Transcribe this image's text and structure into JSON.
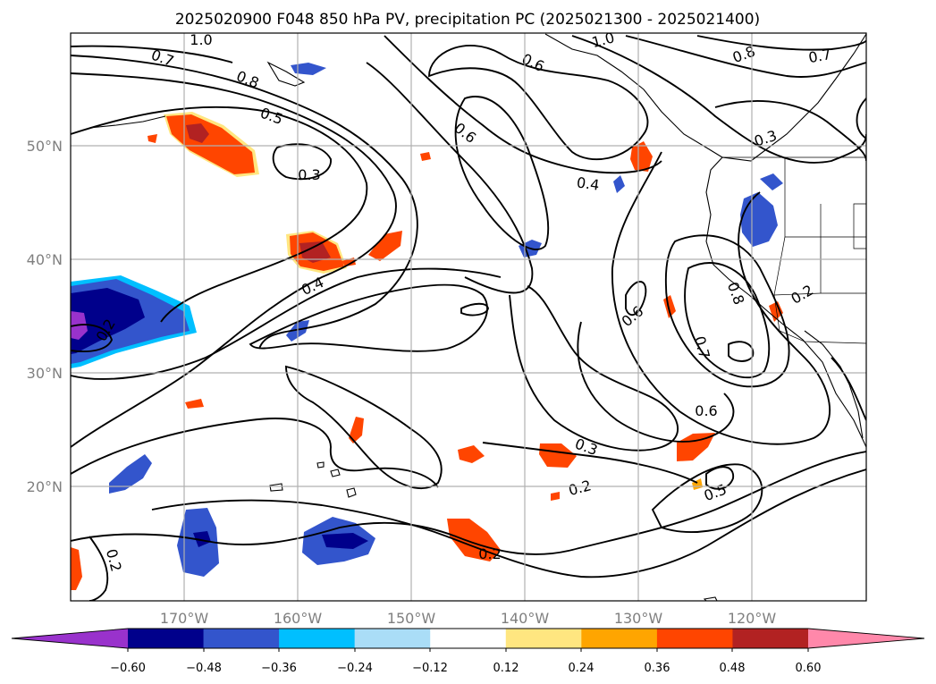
{
  "title": "2025020900 F048 850 hPa PV, precipitation PC (2025021300 - 2025021400)",
  "map": {
    "lon_labels": [
      "170°W",
      "160°W",
      "150°W",
      "140°W",
      "130°W",
      "120°W"
    ],
    "lat_labels": [
      "50°N",
      "40°N",
      "30°N",
      "20°N"
    ],
    "grid": true,
    "contour_labels": [
      "1.0",
      "0.7",
      "0.8",
      "0.5",
      "0.3",
      "0.6",
      "0.6",
      "1.0",
      "0.8",
      "0.7",
      "0.3",
      "0.4",
      "0.4",
      "0.6",
      "0.7",
      "0.6",
      "0.2",
      "0.3",
      "0.2",
      "0.5",
      "0.2",
      "0.2",
      "0.2",
      "0.8"
    ]
  },
  "colorbar": {
    "tick_labels": [
      "−0.60",
      "−0.48",
      "−0.36",
      "−0.24",
      "−0.12",
      "0.12",
      "0.24",
      "0.36",
      "0.48",
      "0.60"
    ],
    "colors": [
      "#9932cc",
      "#00008b",
      "#3355cc",
      "#00bfff",
      "#aaddf7",
      "#ffffff",
      "#ffe680",
      "#ffa500",
      "#ff4500",
      "#b22222",
      "#ff88aa"
    ]
  }
}
